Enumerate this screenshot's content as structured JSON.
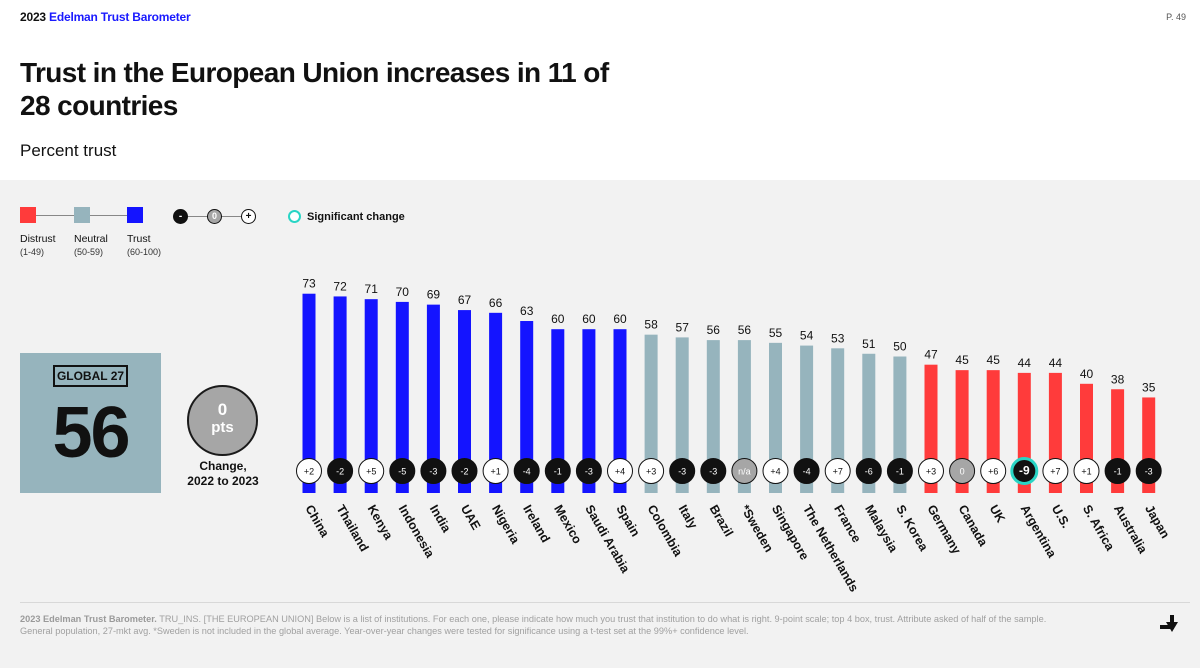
{
  "header": {
    "brand_year": "2023",
    "brand_name": "Edelman Trust Barometer",
    "page_number": "P. 49",
    "title": "Trust in the European Union increases in 11 of 28 countries",
    "subtitle": "Percent trust"
  },
  "legend": {
    "distrust_label": "Distrust",
    "distrust_range": "(1-49)",
    "neutral_label": "Neutral",
    "neutral_range": "(50-59)",
    "trust_label": "Trust",
    "trust_range": "(60-100)",
    "minus_symbol": "-",
    "zero_symbol": "0",
    "plus_symbol": "+",
    "significant_label": "Significant change",
    "colors": {
      "distrust": "#ff3b3b",
      "neutral": "#96b4bd",
      "trust": "#1414ff",
      "significant": "#29d5c5"
    }
  },
  "global": {
    "label": "GLOBAL 27",
    "value": "56",
    "change_value": "0",
    "change_unit": "pts",
    "change_label_line1": "Change,",
    "change_label_line2": "2022 to 2023"
  },
  "chart_data": {
    "type": "bar",
    "ylim": [
      0,
      100
    ],
    "categories": [
      "China",
      "Thailand",
      "Kenya",
      "Indonesia",
      "India",
      "UAE",
      "Nigeria",
      "Ireland",
      "Mexico",
      "Saudi Arabia",
      "Spain",
      "Colombia",
      "Italy",
      "Brazil",
      "*Sweden",
      "Singapore",
      "The Netherlands",
      "France",
      "Malaysia",
      "S. Korea",
      "Germany",
      "Canada",
      "UK",
      "Argentina",
      "U.S.",
      "S. Africa",
      "Australia",
      "Japan"
    ],
    "values": [
      73,
      72,
      71,
      70,
      69,
      67,
      66,
      63,
      60,
      60,
      60,
      58,
      57,
      56,
      56,
      55,
      54,
      53,
      51,
      50,
      47,
      45,
      45,
      44,
      44,
      40,
      38,
      35
    ],
    "changes": [
      "+2",
      "-2",
      "+5",
      "-5",
      "-3",
      "-2",
      "+1",
      "-4",
      "-1",
      "-3",
      "+4",
      "+3",
      "-3",
      "-3",
      "n/a",
      "+4",
      "-4",
      "+7",
      "-6",
      "-1",
      "+3",
      "0",
      "+6",
      "-9",
      "+7",
      "+1",
      "-1",
      "-3"
    ],
    "significant": [
      "Argentina"
    ]
  },
  "footnote": {
    "source": "2023 Edelman Trust Barometer.",
    "text": " TRU_INS. [THE EUROPEAN UNION] Below is a list of institutions. For each one, please indicate how much you trust that institution to do what is right. 9-point scale; top 4 box, trust. Attribute asked of half of the sample. General population, 27-mkt avg. *Sweden is not included in the global average. Year-over-year changes were tested for significance using a t-test set at the 99%+ confidence level."
  },
  "nav": {
    "arrow_icon": "arrow-down-right-icon"
  }
}
